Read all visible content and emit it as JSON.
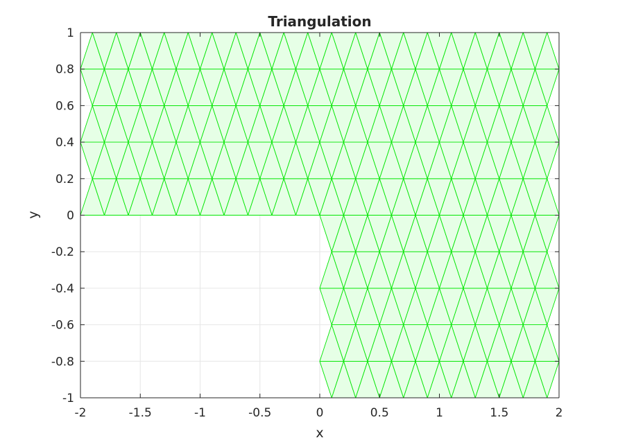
{
  "chart_data": {
    "type": "mesh",
    "title": "Triangulation",
    "xlabel": "x",
    "ylabel": "y",
    "xlim": [
      -2,
      2
    ],
    "ylim": [
      -1,
      1
    ],
    "xticks": [
      -2,
      -1.5,
      -1,
      -0.5,
      0,
      0.5,
      1,
      1.5,
      2
    ],
    "xtick_labels": [
      "-2",
      "-1.5",
      "-1",
      "-0.5",
      "0",
      "0.5",
      "1",
      "1.5",
      "2"
    ],
    "yticks": [
      -1,
      -0.8,
      -0.6,
      -0.4,
      -0.2,
      0,
      0.2,
      0.4,
      0.6,
      0.8,
      1
    ],
    "ytick_labels": [
      "-1",
      "-0.8",
      "-0.6",
      "-0.4",
      "-0.2",
      "0",
      "0.2",
      "0.4",
      "0.6",
      "0.8",
      "1"
    ],
    "grid": true,
    "domain": "L-shaped region: [-2,2]x[0,1] union [0,2]x[-1,0]",
    "mesh": {
      "x_spacing": 0.2,
      "y_spacing": 0.2,
      "x_range": [
        -2,
        2
      ],
      "y_range": [
        -1,
        1
      ],
      "excluded_region": {
        "x": [
          -2,
          0
        ],
        "y": [
          -1,
          0
        ]
      }
    },
    "edge_color": "#00e600",
    "face_color": "#e6ffe6"
  }
}
